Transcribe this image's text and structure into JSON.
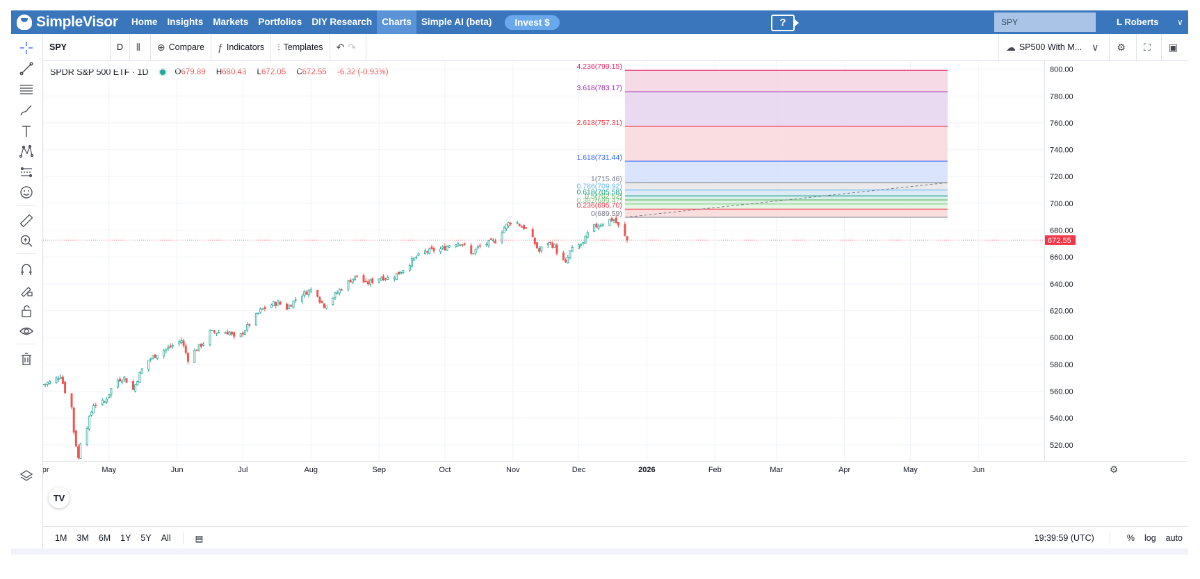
{
  "nav": {
    "brand": "SimpleVisor",
    "items": [
      "Home",
      "Insights",
      "Markets",
      "Portfolios",
      "DIY Research",
      "Charts",
      "Simple AI (beta)"
    ],
    "active": "Charts",
    "invest_label": "Invest $",
    "help_glyph": "?",
    "search_value": "SPY",
    "user": "L Roberts",
    "user_menu_icon": "chevron-down-icon",
    "colors": {
      "bar": "#3a76bc",
      "active": "#5a94d6",
      "invest": "#6aa8ec"
    }
  },
  "toolbar": {
    "symbol": "SPY",
    "interval": "D",
    "compare_label": "Compare",
    "indicators_label": "Indicators",
    "templates_label": "Templates",
    "layout_label": "SP500 With M..."
  },
  "legend": {
    "title": "SPDR S&P 500 ETF · 1D",
    "open": "679.89",
    "high": "680.43",
    "low": "672.05",
    "close": "672.55",
    "change": "-6.32 (-0.93%)"
  },
  "chart_data": {
    "type": "candlestick",
    "symbol": "SPY",
    "interval": "1D",
    "ylim": [
      508,
      806
    ],
    "y_ticks": [
      520,
      540,
      560,
      580,
      600,
      620,
      640,
      660,
      680,
      700,
      720,
      740,
      760,
      780,
      800
    ],
    "y_tick_labels": [
      "520.00",
      "540.00",
      "560.00",
      "580.00",
      "600.00",
      "620.00",
      "640.00",
      "660.00",
      "680.00",
      "700.00",
      "720.00",
      "740.00",
      "760.00",
      "780.00",
      "800.00"
    ],
    "x_labels": [
      "Apr",
      "May",
      "Jun",
      "Jul",
      "Aug",
      "Sep",
      "Oct",
      "Nov",
      "Dec",
      "2026",
      "Feb",
      "Mar",
      "Apr",
      "May",
      "Jun"
    ],
    "x_label_day": [
      0,
      30,
      61,
      91,
      122,
      153,
      183,
      214,
      244,
      275,
      306,
      334,
      365,
      395,
      426
    ],
    "x_start": "2025-03-25",
    "x_range_days": [
      0,
      456
    ],
    "last_price": 672.55,
    "last_price_label": "672.55",
    "last_price_color": "#f23645",
    "up_color": "#26a69a",
    "down_color": "#ef5350",
    "price_path": [
      [
        0,
        565
      ],
      [
        5,
        568
      ],
      [
        8,
        572
      ],
      [
        10,
        560
      ],
      [
        13,
        548
      ],
      [
        14,
        530
      ],
      [
        15,
        520
      ],
      [
        16,
        510
      ],
      [
        17,
        522
      ],
      [
        20,
        534
      ],
      [
        23,
        550
      ],
      [
        28,
        552
      ],
      [
        33,
        568
      ],
      [
        37,
        570
      ],
      [
        41,
        561
      ],
      [
        44,
        573
      ],
      [
        47,
        582
      ],
      [
        54,
        590
      ],
      [
        57,
        592
      ],
      [
        63,
        598
      ],
      [
        66,
        584
      ],
      [
        69,
        590
      ],
      [
        73,
        596
      ],
      [
        76,
        604
      ],
      [
        80,
        604
      ],
      [
        85,
        604
      ],
      [
        88,
        597
      ],
      [
        91,
        604
      ],
      [
        95,
        612
      ],
      [
        99,
        620
      ],
      [
        103,
        624
      ],
      [
        107,
        626
      ],
      [
        111,
        622
      ],
      [
        116,
        630
      ],
      [
        120,
        634
      ],
      [
        124,
        637
      ],
      [
        126,
        628
      ],
      [
        128,
        624
      ],
      [
        132,
        630
      ],
      [
        136,
        637
      ],
      [
        140,
        643
      ],
      [
        143,
        646
      ],
      [
        147,
        640
      ],
      [
        151,
        643
      ],
      [
        154,
        645
      ],
      [
        158,
        644
      ],
      [
        162,
        648
      ],
      [
        166,
        654
      ],
      [
        170,
        660
      ],
      [
        174,
        664
      ],
      [
        178,
        665
      ],
      [
        182,
        666
      ],
      [
        186,
        670
      ],
      [
        190,
        671
      ],
      [
        192,
        668
      ],
      [
        195,
        662
      ],
      [
        198,
        667
      ],
      [
        202,
        670
      ],
      [
        206,
        672
      ],
      [
        210,
        682
      ],
      [
        214,
        688
      ],
      [
        217,
        684
      ],
      [
        220,
        681
      ],
      [
        222,
        676
      ],
      [
        224,
        670
      ],
      [
        226,
        664
      ],
      [
        229,
        672
      ],
      [
        233,
        668
      ],
      [
        235,
        660
      ],
      [
        238,
        655
      ],
      [
        240,
        664
      ],
      [
        243,
        668
      ],
      [
        246,
        670
      ],
      [
        249,
        681
      ],
      [
        253,
        684
      ],
      [
        257,
        687
      ],
      [
        260,
        688
      ],
      [
        262,
        683
      ],
      [
        264,
        678
      ],
      [
        266,
        672.55
      ]
    ],
    "fibonacci": {
      "start_day": 265,
      "end_day": 412,
      "levels": [
        {
          "ratio": "0",
          "value": 689.59,
          "label": "0(689.59)",
          "color": "#787b86",
          "fill": "#f9d8d8"
        },
        {
          "ratio": "0.236",
          "value": 695.7,
          "label": "0.236(695.70)",
          "color": "#f23645",
          "fill": "#e1f4df"
        },
        {
          "ratio": "0.382",
          "value": 699.47,
          "label": "0.382(699.47)",
          "color": "#81c784",
          "fill": "#d7f0de"
        },
        {
          "ratio": "0.5",
          "value": 702.52,
          "label": "0.5(702.52)",
          "color": "#4caf50",
          "fill": "#d4ece9"
        },
        {
          "ratio": "0.618",
          "value": 705.58,
          "label": "0.618(705.58)",
          "color": "#089981",
          "fill": "#d7e6f3"
        },
        {
          "ratio": "0.786",
          "value": 709.92,
          "label": "0.786(709.92)",
          "color": "#64b5f6",
          "fill": "#e6e6e9"
        },
        {
          "ratio": "1",
          "value": 715.46,
          "label": "1(715.46)",
          "color": "#787b86",
          "fill": "#d4dffb"
        },
        {
          "ratio": "1.618",
          "value": 731.44,
          "label": "1.618(731.44)",
          "color": "#2962ff",
          "fill": "#f8d7da"
        },
        {
          "ratio": "2.618",
          "value": 757.31,
          "label": "2.618(757.31)",
          "color": "#f23645",
          "fill": "#e5d4ee"
        },
        {
          "ratio": "3.618",
          "value": 783.17,
          "label": "3.618(783.17)",
          "color": "#9c27b0",
          "fill": "#f4d4e2"
        },
        {
          "ratio": "4.236",
          "value": 799.15,
          "label": "4.236(799.15)",
          "color": "#e91e63",
          "fill": null
        }
      ]
    }
  },
  "bottom": {
    "ranges": [
      "1M",
      "3M",
      "6M",
      "1Y",
      "5Y",
      "All"
    ],
    "time": "19:39:59 (UTC)",
    "percent_label": "%",
    "log_label": "log",
    "auto_label": "auto"
  },
  "tv_logo": "TV"
}
